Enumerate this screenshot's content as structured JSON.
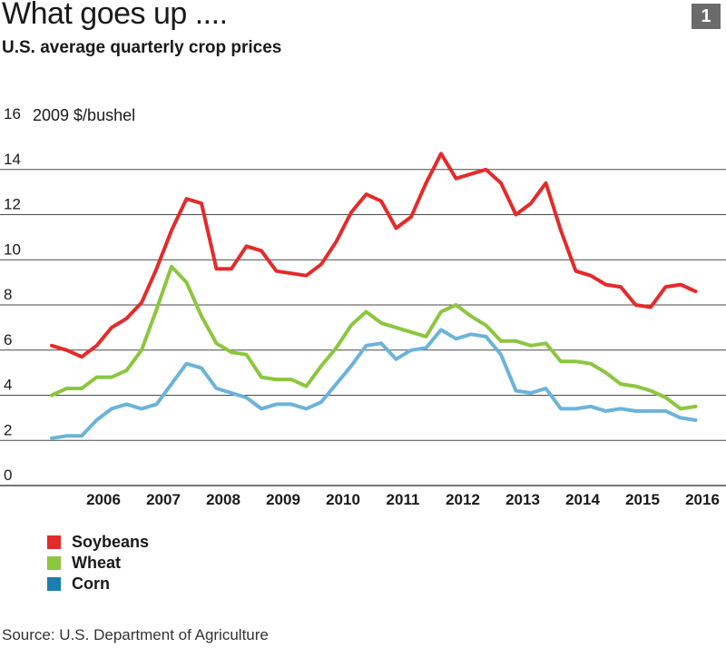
{
  "header": {
    "title": "What goes up ....",
    "subtitle": "U.S. average quarterly crop prices",
    "badge": "1"
  },
  "source": "Source: U.S. Department of Agriculture",
  "colors": {
    "soybeans": "#e32b2b",
    "wheat": "#8cc63f",
    "corn": "#6cb3d9",
    "corn_swatch": "#1a7fb0",
    "grid": "#4a4a4a"
  },
  "legend": [
    {
      "label": "Soybeans",
      "key": "soybeans"
    },
    {
      "label": "Wheat",
      "key": "wheat"
    },
    {
      "label": "Corn",
      "key": "corn_swatch"
    }
  ],
  "chart_data": {
    "type": "line",
    "title": "U.S. average quarterly crop prices",
    "ylabel": "2009 $/bushel",
    "ylim": [
      0,
      16
    ],
    "yticks": [
      0,
      2,
      4,
      6,
      8,
      10,
      12,
      14,
      16
    ],
    "xlim": [
      2005.6,
      2016.8
    ],
    "xticks": [
      {
        "label": "2006",
        "value": 2006
      },
      {
        "label": "2007",
        "value": 2007
      },
      {
        "label": "2008",
        "value": 2008
      },
      {
        "label": "2009",
        "value": 2009
      },
      {
        "label": "2010",
        "value": 2010
      },
      {
        "label": "2011",
        "value": 2011
      },
      {
        "label": "2012",
        "value": 2012
      },
      {
        "label": "2013",
        "value": 2013
      },
      {
        "label": "2014",
        "value": 2014
      },
      {
        "label": "2015",
        "value": 2015
      },
      {
        "label": "2016",
        "value": 2016
      }
    ],
    "x_start": 2005.5,
    "x_step": 0.25,
    "series": [
      {
        "name": "Soybeans",
        "key": "soybeans",
        "values": [
          6.2,
          6.0,
          5.7,
          6.2,
          7.0,
          7.4,
          8.1,
          9.6,
          11.3,
          12.7,
          12.5,
          9.6,
          9.6,
          10.6,
          10.4,
          9.5,
          9.4,
          9.3,
          9.8,
          10.8,
          12.1,
          12.9,
          12.6,
          11.4,
          11.9,
          13.4,
          14.7,
          13.6,
          13.8,
          14.0,
          13.4,
          12.0,
          12.5,
          13.4,
          11.3,
          9.5,
          9.3,
          8.9,
          8.8,
          8.0,
          7.9,
          8.8,
          8.9,
          8.6
        ]
      },
      {
        "name": "Wheat",
        "key": "wheat",
        "values": [
          4.0,
          4.3,
          4.3,
          4.8,
          4.8,
          5.1,
          6.0,
          7.8,
          9.7,
          9.0,
          7.5,
          6.3,
          5.9,
          5.8,
          4.8,
          4.7,
          4.7,
          4.4,
          5.3,
          6.1,
          7.1,
          7.7,
          7.2,
          7.0,
          6.8,
          6.6,
          7.7,
          8.0,
          7.5,
          7.1,
          6.4,
          6.4,
          6.2,
          6.3,
          5.5,
          5.5,
          5.4,
          5.0,
          4.5,
          4.4,
          4.2,
          3.9,
          3.4,
          3.5
        ]
      },
      {
        "name": "Corn",
        "key": "corn",
        "values": [
          2.1,
          2.2,
          2.2,
          2.9,
          3.4,
          3.6,
          3.4,
          3.6,
          4.5,
          5.4,
          5.2,
          4.3,
          4.1,
          3.9,
          3.4,
          3.6,
          3.6,
          3.4,
          3.7,
          4.5,
          5.3,
          6.2,
          6.3,
          5.6,
          6.0,
          6.1,
          6.9,
          6.5,
          6.7,
          6.6,
          5.8,
          4.2,
          4.1,
          4.3,
          3.4,
          3.4,
          3.5,
          3.3,
          3.4,
          3.3,
          3.3,
          3.3,
          3.0,
          2.9
        ]
      }
    ]
  }
}
